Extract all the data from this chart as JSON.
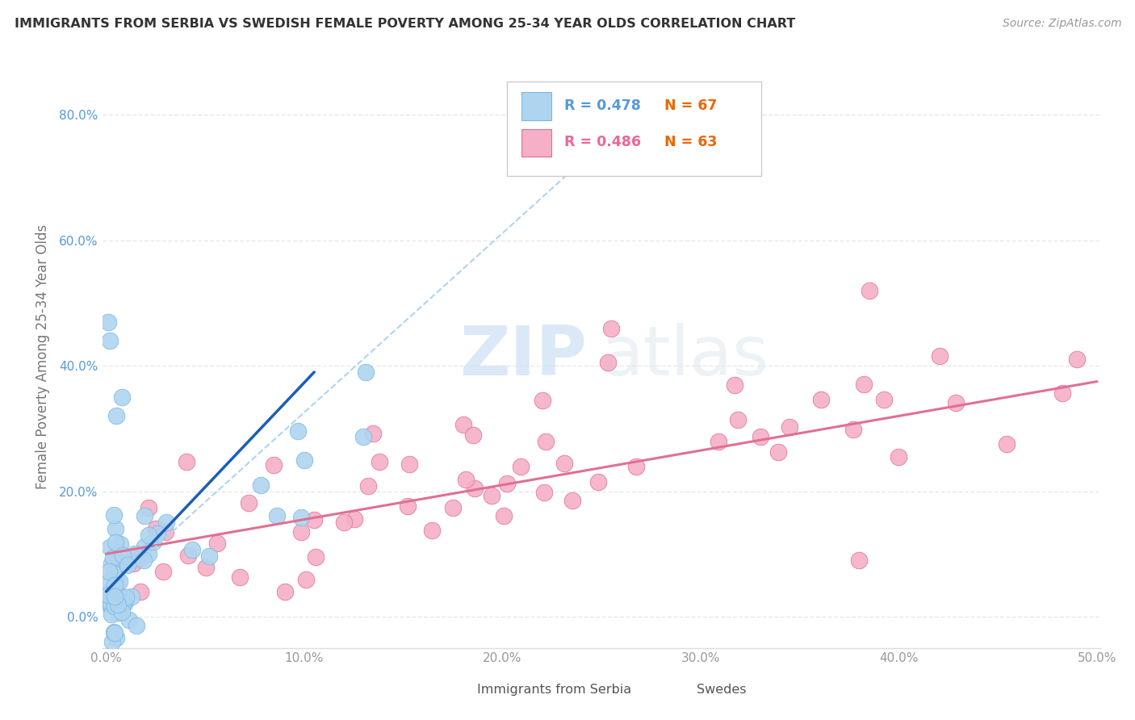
{
  "title": "IMMIGRANTS FROM SERBIA VS SWEDISH FEMALE POVERTY AMONG 25-34 YEAR OLDS CORRELATION CHART",
  "source": "Source: ZipAtlas.com",
  "ylabel": "Female Poverty Among 25-34 Year Olds",
  "xlim": [
    -0.002,
    0.502
  ],
  "ylim": [
    -0.05,
    0.88
  ],
  "xticks": [
    0.0,
    0.1,
    0.2,
    0.3,
    0.4,
    0.5
  ],
  "xticklabels": [
    "0.0%",
    "10.0%",
    "20.0%",
    "30.0%",
    "40.0%",
    "50.0%"
  ],
  "yticks": [
    0.0,
    0.2,
    0.4,
    0.6,
    0.8
  ],
  "yticklabels": [
    "0.0%",
    "20.0%",
    "40.0%",
    "60.0%",
    "80.0%"
  ],
  "R_serbia": 0.478,
  "N_serbia": 67,
  "R_swedes": 0.486,
  "N_swedes": 63,
  "watermark_zip": "ZIP",
  "watermark_atlas": "atlas",
  "background_color": "#ffffff",
  "grid_color": "#e8e8e8",
  "grid_style": "--",
  "serbia_dot_color": "#afd4f0",
  "serbia_dot_edge": "#7ab8e0",
  "swedes_dot_color": "#f5b0c8",
  "swedes_dot_edge": "#e07090",
  "serbia_line_color": "#1a5eb8",
  "serbia_dash_color": "#afd4f0",
  "swedes_line_color": "#e07090",
  "ytick_color": "#5599dd",
  "xtick_color": "#999999",
  "ylabel_color": "#777777",
  "title_color": "#333333",
  "source_color": "#999999",
  "legend_R_color_serbia": "#5599dd",
  "legend_N_color_serbia": "#ee6600",
  "legend_R_color_swedes": "#ee6699",
  "legend_N_color_swedes": "#ee6600"
}
